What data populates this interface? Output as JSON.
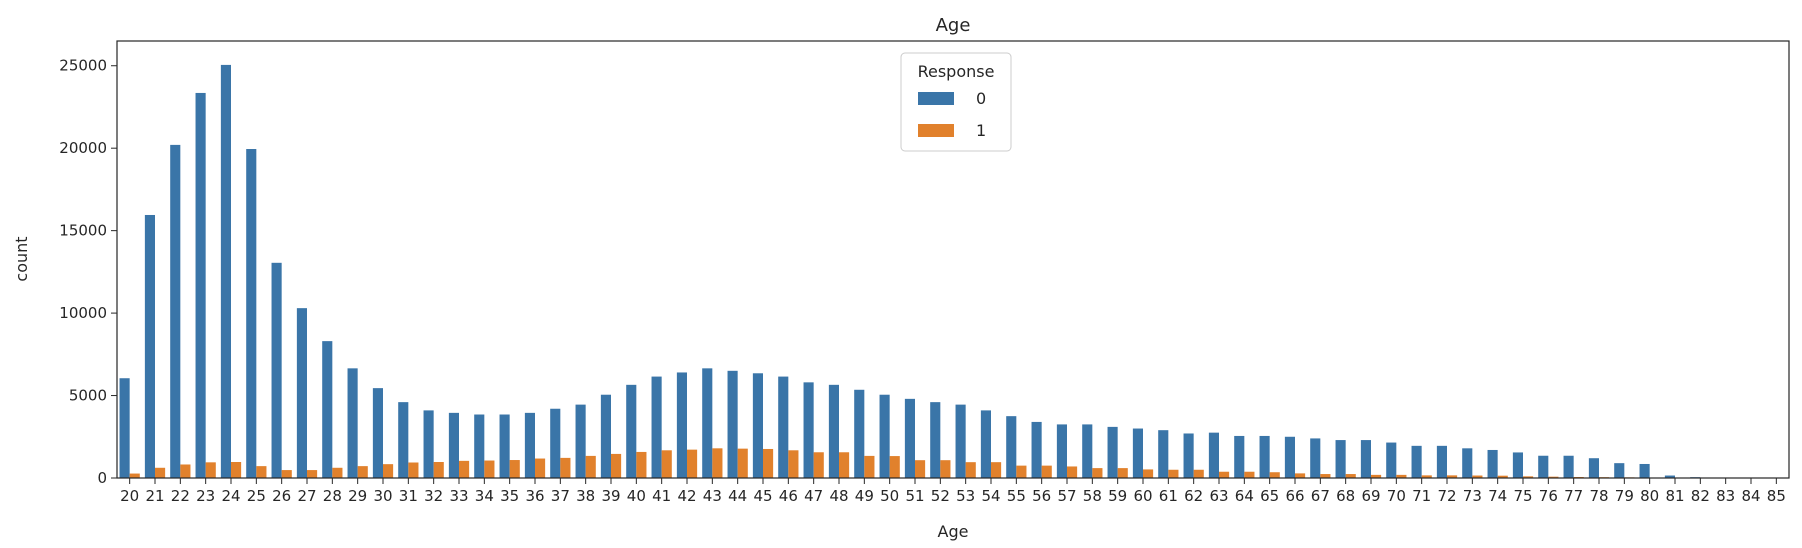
{
  "chart_data": {
    "type": "bar",
    "title": "Age",
    "xlabel": "Age",
    "ylabel": "count",
    "ylim": [
      0,
      26500
    ],
    "yticks": [
      0,
      5000,
      10000,
      15000,
      20000,
      25000
    ],
    "grid": false,
    "legend": {
      "title": "Response",
      "placement": "top-center"
    },
    "categories": [
      "20",
      "21",
      "22",
      "23",
      "24",
      "25",
      "26",
      "27",
      "28",
      "29",
      "30",
      "31",
      "32",
      "33",
      "34",
      "35",
      "36",
      "37",
      "38",
      "39",
      "40",
      "41",
      "42",
      "43",
      "44",
      "45",
      "46",
      "47",
      "48",
      "49",
      "50",
      "51",
      "52",
      "53",
      "54",
      "55",
      "56",
      "57",
      "58",
      "59",
      "60",
      "61",
      "62",
      "63",
      "64",
      "65",
      "66",
      "67",
      "68",
      "69",
      "70",
      "71",
      "72",
      "73",
      "74",
      "75",
      "76",
      "77",
      "78",
      "79",
      "80",
      "81",
      "82",
      "83",
      "84",
      "85"
    ],
    "series": [
      {
        "name": "0",
        "color": "#3a75a8",
        "values": [
          6050,
          15950,
          20200,
          23350,
          25050,
          19950,
          13050,
          10300,
          8300,
          6650,
          5450,
          4600,
          4100,
          3950,
          3850,
          3850,
          3950,
          4200,
          4450,
          5050,
          5650,
          6150,
          6400,
          6650,
          6500,
          6350,
          6150,
          5800,
          5650,
          5350,
          5050,
          4800,
          4600,
          4450,
          4100,
          3750,
          3400,
          3250,
          3250,
          3100,
          3000,
          2900,
          2700,
          2750,
          2550,
          2550,
          2500,
          2400,
          2300,
          2300,
          2150,
          1950,
          1950,
          1800,
          1700,
          1550,
          1350,
          1350,
          1200,
          900,
          850,
          150,
          50,
          30,
          20,
          10
        ]
      },
      {
        "name": "1",
        "color": "#e1812c",
        "values": [
          270,
          620,
          820,
          950,
          970,
          720,
          480,
          480,
          620,
          720,
          840,
          940,
          970,
          1040,
          1060,
          1090,
          1180,
          1220,
          1340,
          1460,
          1580,
          1680,
          1720,
          1800,
          1780,
          1760,
          1680,
          1560,
          1560,
          1340,
          1330,
          1080,
          1080,
          960,
          960,
          750,
          750,
          700,
          600,
          600,
          520,
          500,
          500,
          380,
          380,
          350,
          280,
          240,
          240,
          190,
          190,
          160,
          160,
          150,
          140,
          100,
          80,
          60,
          50,
          40,
          30,
          10,
          5,
          3,
          2,
          1
        ]
      }
    ]
  }
}
